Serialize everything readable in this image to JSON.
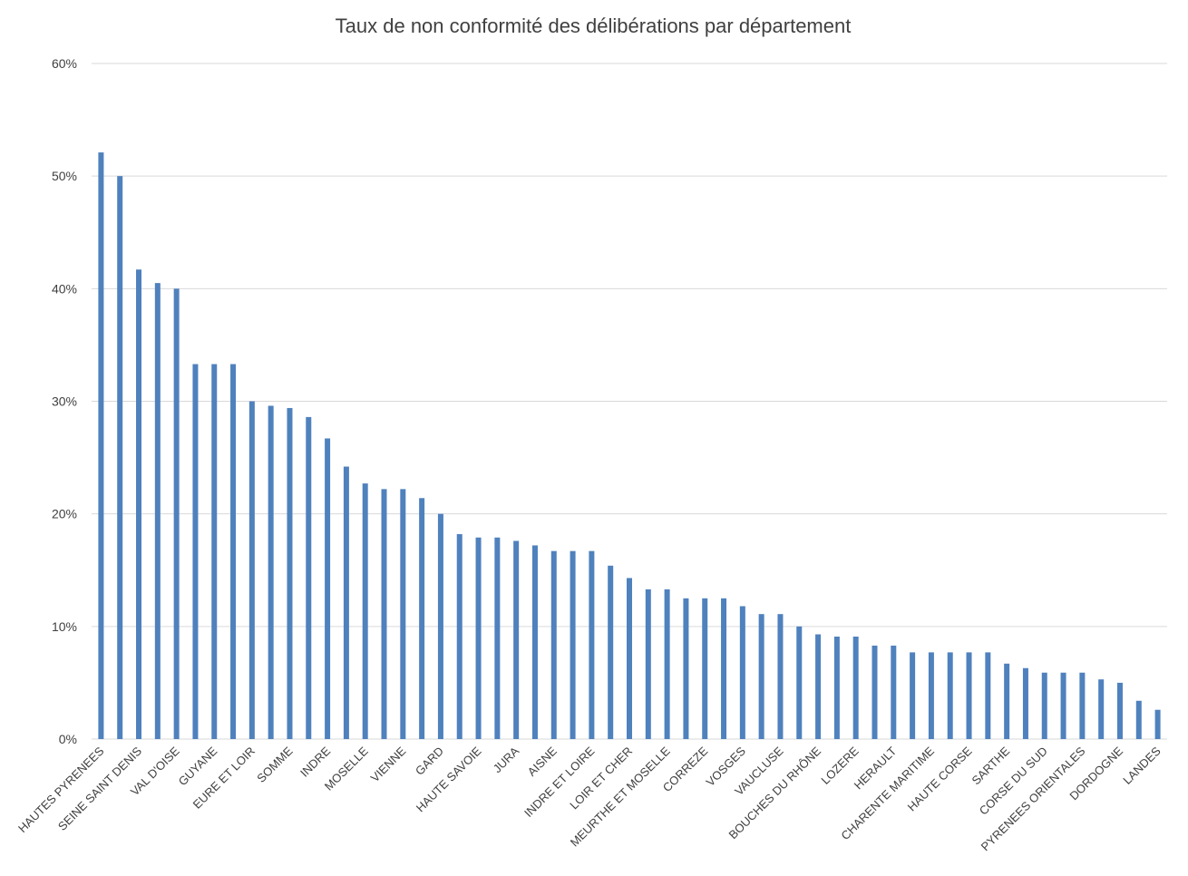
{
  "chart_data": {
    "type": "bar",
    "title": "Taux de non conformité des délibérations par département",
    "xlabel": "",
    "ylabel": "",
    "ylim": [
      0,
      0.6
    ],
    "yticks": [
      {
        "value": 0,
        "label": "0%"
      },
      {
        "value": 0.1,
        "label": "10%"
      },
      {
        "value": 0.2,
        "label": "20%"
      },
      {
        "value": 0.3,
        "label": "30%"
      },
      {
        "value": 0.4,
        "label": "40%"
      },
      {
        "value": 0.5,
        "label": "50%"
      },
      {
        "value": 0.6,
        "label": "60%"
      }
    ],
    "grid": true,
    "legend": "none",
    "bar_color": "#4f81bd",
    "categories": [
      "HAUTES PYRENEES",
      "",
      "SEINE SAINT DENIS",
      "",
      "VAL D'OISE",
      "",
      "GUYANE",
      "",
      "EURE ET LOIR",
      "",
      "SOMME",
      "",
      "INDRE",
      "",
      "MOSELLE",
      "",
      "VIENNE",
      "",
      "GARD",
      "",
      "HAUTE SAVOIE",
      "",
      "JURA",
      "",
      "AISNE",
      "",
      "INDRE ET LOIRE",
      "",
      "LOIR ET CHER",
      "",
      "MEURTHE ET MOSELLE",
      "",
      "CORREZE",
      "",
      "VOSGES",
      "",
      "VAUCLUSE",
      "",
      "BOUCHES DU RHÔNE",
      "",
      "LOZERE",
      "",
      "HERAULT",
      "",
      "CHARENTE MARITIME",
      "",
      "HAUTE CORSE",
      "",
      "SARTHE",
      "",
      "CORSE DU SUD",
      "",
      "PYRENEES ORIENTALES",
      "",
      "DORDOGNE",
      "",
      "LANDES"
    ],
    "values": [
      0.521,
      0.5,
      0.417,
      0.405,
      0.4,
      0.333,
      0.333,
      0.333,
      0.3,
      0.296,
      0.294,
      0.286,
      0.267,
      0.242,
      0.227,
      0.222,
      0.222,
      0.214,
      0.2,
      0.182,
      0.179,
      0.179,
      0.176,
      0.172,
      0.167,
      0.167,
      0.167,
      0.154,
      0.143,
      0.133,
      0.133,
      0.125,
      0.125,
      0.125,
      0.118,
      0.111,
      0.111,
      0.1,
      0.093,
      0.091,
      0.091,
      0.083,
      0.083,
      0.077,
      0.077,
      0.077,
      0.077,
      0.077,
      0.067,
      0.063,
      0.059,
      0.059,
      0.059,
      0.053,
      0.05,
      0.034,
      0.026
    ]
  }
}
